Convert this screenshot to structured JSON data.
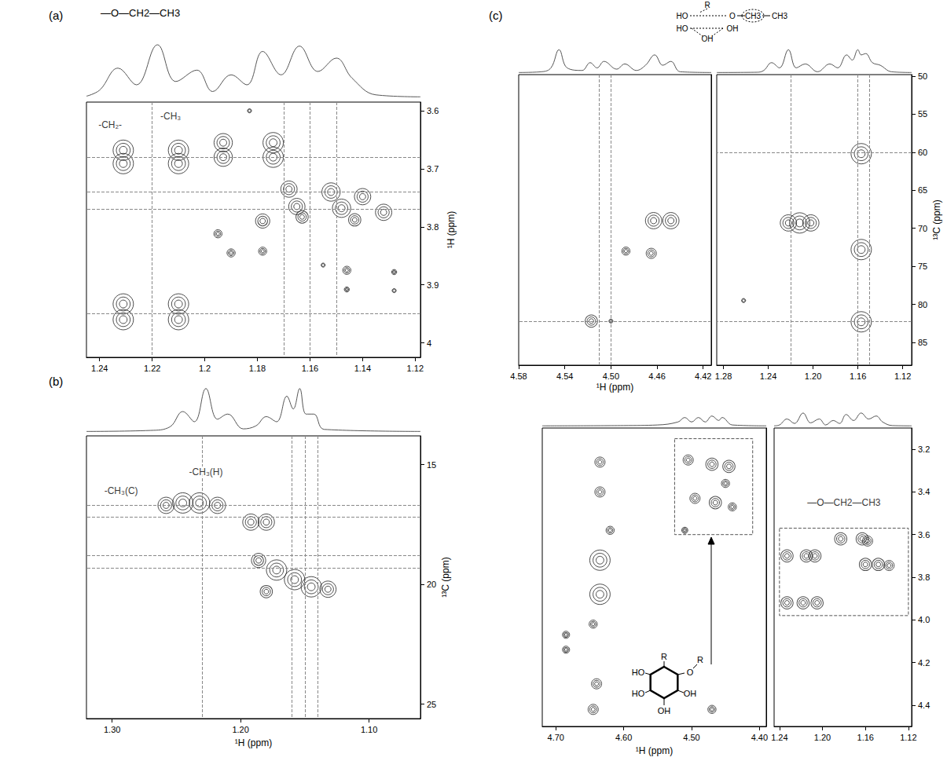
{
  "chart_data": [
    {
      "type": "scatter",
      "title": "(a)",
      "structure": [
        "—O—CH2—CH3"
      ],
      "xlim": [
        1.245,
        1.118
      ],
      "xticks": [
        1.24,
        1.22,
        {
          "value": 1.2,
          "label": "1.2"
        },
        1.18,
        1.16,
        1.14,
        1.12
      ],
      "ylim": [
        4.025,
        3.585
      ],
      "yticks": [
        3.6,
        3.7,
        3.8,
        3.9,
        4
      ],
      "ylabel": "¹H (ppm)",
      "grid": false,
      "peaks": [
        [
          1.231,
          3.668,
          1
        ],
        [
          1.231,
          3.691,
          1
        ],
        [
          1.21,
          3.668,
          1
        ],
        [
          1.21,
          3.691,
          1
        ],
        [
          1.231,
          3.933,
          1
        ],
        [
          1.231,
          3.96,
          1
        ],
        [
          1.21,
          3.933,
          1
        ],
        [
          1.21,
          3.96,
          1
        ],
        [
          1.193,
          3.655,
          0.9
        ],
        [
          1.193,
          3.68,
          0.9
        ],
        [
          1.174,
          3.655,
          1
        ],
        [
          1.174,
          3.68,
          1
        ],
        [
          1.168,
          3.735,
          0.8
        ],
        [
          1.152,
          3.74,
          0.9
        ],
        [
          1.14,
          3.748,
          0.8
        ],
        [
          1.165,
          3.765,
          0.8
        ],
        [
          1.148,
          3.768,
          0.9
        ],
        [
          1.132,
          3.775,
          0.8
        ],
        [
          1.178,
          3.79,
          0.7
        ],
        [
          1.163,
          3.783,
          0.6
        ],
        [
          1.143,
          3.788,
          0.6
        ],
        [
          1.195,
          3.812,
          0.4
        ],
        [
          1.19,
          3.845,
          0.4
        ],
        [
          1.178,
          3.842,
          0.4
        ],
        [
          1.155,
          3.866,
          0.2
        ],
        [
          1.146,
          3.875,
          0.4
        ],
        [
          1.128,
          3.878,
          0.25
        ],
        [
          1.146,
          3.908,
          0.25
        ],
        [
          1.128,
          3.91,
          0.2
        ],
        [
          1.183,
          3.6,
          0.2
        ]
      ],
      "guides": {
        "x": [
          1.215,
          1.173,
          1.16,
          1.151
        ],
        "y": [
          3.682,
          3.738,
          3.765,
          3.946
        ]
      },
      "annotations": [
        {
          "text": "-CH₂-",
          "x": 1.236,
          "y": 3.624
        },
        {
          "text": "-CH₃",
          "x": 1.213,
          "y": 3.61
        }
      ],
      "trace": {
        "x": [
          1.245,
          1.24,
          1.233,
          1.226,
          1.218,
          1.211,
          1.203,
          1.197,
          1.19,
          1.184,
          1.178,
          1.171,
          1.164,
          1.157,
          1.15,
          1.144,
          1.135,
          1.118
        ],
        "y": [
          0.03,
          0.12,
          0.45,
          0.2,
          0.8,
          0.25,
          0.42,
          0.1,
          0.35,
          0.2,
          0.7,
          0.35,
          0.78,
          0.4,
          0.6,
          0.3,
          0.05,
          0.02
        ]
      },
      "trace_ylim": [
        0,
        1
      ]
    },
    {
      "type": "scatter",
      "title": "(b)",
      "xlim": [
        1.32,
        1.06
      ],
      "xticks": [
        {
          "value": 1.3,
          "label": "1.30"
        },
        {
          "value": 1.2,
          "label": "1.20"
        },
        {
          "value": 1.1,
          "label": "1.10"
        }
      ],
      "xlabel": "¹H (ppm)",
      "ylim": [
        25.6,
        13.8
      ],
      "yticks": [
        15,
        20,
        25
      ],
      "ylabel": "¹³C (ppm)",
      "grid": false,
      "peaks": [
        [
          1.258,
          16.7,
          0.8
        ],
        [
          1.245,
          16.6,
          1
        ],
        [
          1.232,
          16.6,
          1
        ],
        [
          1.218,
          16.7,
          0.8
        ],
        [
          1.192,
          17.4,
          0.8
        ],
        [
          1.18,
          17.4,
          0.8
        ],
        [
          1.186,
          19.0,
          0.7
        ],
        [
          1.172,
          19.4,
          1
        ],
        [
          1.158,
          19.8,
          1
        ],
        [
          1.145,
          20.1,
          1
        ],
        [
          1.132,
          20.2,
          0.8
        ],
        [
          1.18,
          20.3,
          0.6
        ]
      ],
      "guides": {
        "x": [
          1.227,
          1.164,
          1.154,
          1.143
        ],
        "y": [
          16.7,
          17.2,
          18.8,
          19.3
        ]
      },
      "annotations": [
        {
          "text": "-CH₃(H)",
          "x": 1.227,
          "y": 15.3
        },
        {
          "text": "-CH₃(C)",
          "x": 1.293,
          "y": 16.1
        }
      ],
      "trace": {
        "x": [
          1.32,
          1.27,
          1.255,
          1.245,
          1.236,
          1.227,
          1.218,
          1.21,
          1.198,
          1.188,
          1.18,
          1.172,
          1.164,
          1.159,
          1.154,
          1.149,
          1.143,
          1.135,
          1.06
        ],
        "y": [
          0.01,
          0.03,
          0.1,
          0.4,
          0.2,
          0.85,
          0.25,
          0.35,
          0.06,
          0.12,
          0.3,
          0.2,
          0.7,
          0.45,
          0.85,
          0.35,
          0.35,
          0.05,
          0.01
        ]
      },
      "trace_ylim": [
        0,
        1
      ]
    },
    {
      "type": "scatter",
      "title": "(c)",
      "structure": [
        "R",
        "HO",
        "O",
        "CH3",
        "CH3",
        "HO",
        "OH",
        "OH"
      ],
      "xlim": [
        4.58,
        4.413
      ],
      "xticks": [
        4.58,
        4.54,
        {
          "value": 4.5,
          "label": "4.50"
        },
        4.46,
        4.42
      ],
      "xlabel": "¹H (ppm)",
      "ylim": [
        88,
        49.8
      ],
      "yticks": [
        50,
        55,
        60,
        65,
        70,
        75,
        80,
        85
      ],
      "grid": false,
      "tick_labels": "x",
      "peaks": [
        [
          4.463,
          69,
          0.8
        ],
        [
          4.448,
          69,
          0.8
        ],
        [
          4.487,
          73,
          0.4
        ],
        [
          4.465,
          73.3,
          0.5
        ],
        [
          4.517,
          82.2,
          0.6
        ],
        [
          4.5,
          82.2,
          0.2
        ]
      ],
      "guides": {
        "x": [
          4.512,
          4.499
        ],
        "y": [
          82.2
        ]
      },
      "trace": {
        "x": [
          4.58,
          4.56,
          4.552,
          4.545,
          4.538,
          4.525,
          4.518,
          4.512,
          4.506,
          4.495,
          4.488,
          4.478,
          4.47,
          4.462,
          4.455,
          4.448,
          4.44,
          4.413
        ],
        "y": [
          0.02,
          0.05,
          0.2,
          0.9,
          0.2,
          0.1,
          0.4,
          0.2,
          0.45,
          0.15,
          0.35,
          0.1,
          0.3,
          0.7,
          0.3,
          0.45,
          0.05,
          0.02
        ]
      },
      "trace_ylim": [
        0,
        1
      ]
    },
    {
      "type": "scatter",
      "xlim": [
        1.286,
        1.112
      ],
      "xticks": [
        1.28,
        1.24,
        {
          "value": 1.2,
          "label": "1.20"
        },
        1.16,
        1.12
      ],
      "ylim": [
        88,
        49.8
      ],
      "yticks": [
        50,
        55,
        60,
        65,
        70,
        75,
        80,
        85
      ],
      "ylabel": "¹³C (ppm)",
      "grid": false,
      "peaks": [
        [
          1.222,
          69.3,
          0.8
        ],
        [
          1.212,
          69.3,
          1
        ],
        [
          1.202,
          69.3,
          0.8
        ],
        [
          1.157,
          60.2,
          1
        ],
        [
          1.157,
          72.8,
          1
        ],
        [
          1.157,
          82.3,
          1
        ],
        [
          1.262,
          79.5,
          0.2
        ]
      ],
      "guides": {
        "x": [
          1.218,
          1.157,
          1.15
        ],
        "y": [
          60,
          82.2
        ]
      },
      "trace": {
        "x": [
          1.286,
          1.25,
          1.244,
          1.237,
          1.23,
          1.222,
          1.215,
          1.207,
          1.196,
          1.185,
          1.178,
          1.17,
          1.165,
          1.16,
          1.157,
          1.153,
          1.147,
          1.14,
          1.13,
          1.112
        ],
        "y": [
          0.02,
          0.03,
          0.1,
          0.4,
          0.2,
          0.9,
          0.2,
          0.35,
          0.05,
          0.35,
          0.2,
          0.7,
          0.5,
          0.9,
          0.7,
          0.75,
          0.4,
          0.3,
          0.05,
          0.02
        ]
      },
      "trace_ylim": [
        0,
        1
      ]
    },
    {
      "type": "scatter",
      "structure": [
        "R",
        "HO",
        "O",
        "R",
        "HO",
        "OH",
        "OH"
      ],
      "xlim": [
        4.72,
        4.39
      ],
      "xticks": [
        {
          "value": 4.7,
          "label": "4.70"
        },
        {
          "value": 4.6,
          "label": "4.60"
        },
        {
          "value": 4.5,
          "label": "4.50"
        },
        {
          "value": 4.4,
          "label": "4.40"
        }
      ],
      "xlabel": "¹H (ppm)",
      "ylim": [
        4.5,
        3.1
      ],
      "yticks": [
        3.2,
        3.4,
        3.6,
        3.8,
        {
          "value": 4,
          "label": "4.0"
        },
        4.2,
        4.4
      ],
      "grid": false,
      "tick_labels": "x",
      "peaks": [
        [
          4.635,
          3.72,
          1
        ],
        [
          4.635,
          3.88,
          1
        ],
        [
          4.635,
          3.26,
          0.5
        ],
        [
          4.635,
          3.4,
          0.5
        ],
        [
          4.62,
          3.58,
          0.4
        ],
        [
          4.645,
          4.02,
          0.4
        ],
        [
          4.64,
          4.3,
          0.5
        ],
        [
          4.645,
          4.42,
          0.5
        ],
        [
          4.685,
          4.07,
          0.35
        ],
        [
          4.685,
          4.14,
          0.35
        ],
        [
          4.47,
          4.42,
          0.4
        ],
        [
          4.505,
          3.25,
          0.5
        ],
        [
          4.47,
          3.27,
          0.6
        ],
        [
          4.445,
          3.28,
          0.6
        ],
        [
          4.495,
          3.43,
          0.5
        ],
        [
          4.465,
          3.45,
          0.6
        ],
        [
          4.44,
          3.47,
          0.4
        ],
        [
          4.51,
          3.58,
          0.3
        ],
        [
          4.45,
          3.36,
          0.4
        ]
      ],
      "boxes": [
        [
          4.525,
          3.15,
          4.41,
          3.6
        ]
      ],
      "trace": {
        "x": [
          4.72,
          4.6,
          4.55,
          4.52,
          4.51,
          4.5,
          4.49,
          4.48,
          4.47,
          4.46,
          4.455,
          4.44,
          4.39
        ],
        "y": [
          0.02,
          0.03,
          0.05,
          0.15,
          0.3,
          0.15,
          0.3,
          0.15,
          0.35,
          0.2,
          0.3,
          0.05,
          0.02
        ]
      },
      "trace_ylim": [
        0,
        1
      ]
    },
    {
      "type": "scatter",
      "xlim": [
        1.245,
        1.117
      ],
      "xticks": [
        1.24,
        {
          "value": 1.2,
          "label": "1.20"
        },
        1.16,
        1.12
      ],
      "ylim": [
        4.5,
        3.1
      ],
      "yticks": [
        3.2,
        3.4,
        3.6,
        3.8,
        {
          "value": 4,
          "label": "4.0"
        },
        4.2,
        4.4
      ],
      "grid": false,
      "peaks": [
        [
          1.233,
          3.7,
          0.6
        ],
        [
          1.215,
          3.7,
          0.6
        ],
        [
          1.207,
          3.7,
          0.6
        ],
        [
          1.233,
          3.92,
          0.6
        ],
        [
          1.218,
          3.92,
          0.6
        ],
        [
          1.205,
          3.92,
          0.6
        ],
        [
          1.183,
          3.62,
          0.6
        ],
        [
          1.163,
          3.62,
          0.6
        ],
        [
          1.158,
          3.63,
          0.5
        ],
        [
          1.16,
          3.74,
          0.6
        ],
        [
          1.148,
          3.74,
          0.6
        ],
        [
          1.138,
          3.745,
          0.5
        ]
      ],
      "boxes": [
        [
          1.24,
          3.57,
          1.12,
          3.98
        ]
      ],
      "annotations": [
        {
          "text": "—O—CH2—CH3",
          "x": 1.18,
          "y": 3.45
        }
      ],
      "trace": {
        "x": [
          1.245,
          1.24,
          1.233,
          1.226,
          1.218,
          1.211,
          1.203,
          1.197,
          1.19,
          1.184,
          1.178,
          1.171,
          1.164,
          1.157,
          1.15,
          1.144,
          1.135,
          1.117
        ],
        "y": [
          0.02,
          0.05,
          0.25,
          0.1,
          0.45,
          0.12,
          0.25,
          0.05,
          0.2,
          0.1,
          0.4,
          0.2,
          0.45,
          0.25,
          0.35,
          0.15,
          0.03,
          0.02
        ]
      },
      "trace_ylim": [
        0,
        1
      ]
    }
  ]
}
